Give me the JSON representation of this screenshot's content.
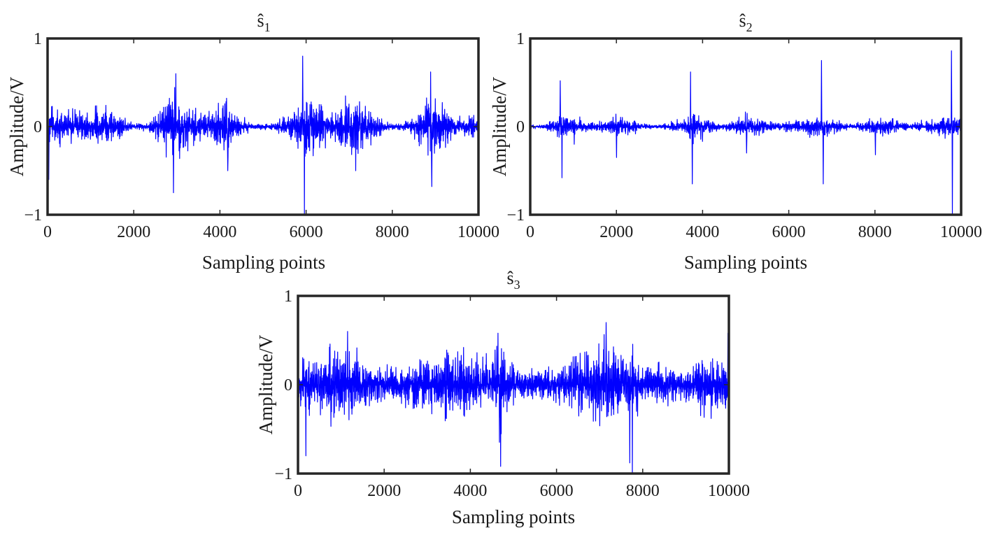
{
  "colors": {
    "signal": "#0000ff",
    "axes": "#262626"
  },
  "chart_data": [
    {
      "type": "line",
      "title": "ŝ",
      "title_subscript": "1",
      "xlabel": "Sampling points",
      "ylabel": "Amplitude/V",
      "xlim": [
        0,
        10000
      ],
      "ylim": [
        -1,
        1
      ],
      "xticks": [
        "0",
        "2000",
        "4000",
        "6000",
        "8000",
        "10000"
      ],
      "yticks": [
        "−1",
        "0",
        "1"
      ],
      "series": [
        {
          "name": "s1",
          "n_points": 10000,
          "envelope_x": [
            0,
            500,
            1000,
            1200,
            1500,
            2000,
            2300,
            2600,
            2900,
            3000,
            3300,
            3600,
            4000,
            4200,
            4400,
            4700,
            5000,
            5300,
            5600,
            5900,
            6000,
            6300,
            6600,
            6900,
            7200,
            7500,
            7800,
            8100,
            8400,
            8700,
            8900,
            9200,
            9500,
            10000
          ],
          "envelope_y": [
            0.3,
            0.15,
            0.2,
            0.3,
            0.2,
            0.03,
            0.05,
            0.2,
            0.45,
            0.38,
            0.25,
            0.15,
            0.3,
            0.35,
            0.15,
            0.05,
            0.03,
            0.05,
            0.15,
            0.3,
            0.4,
            0.3,
            0.15,
            0.3,
            0.4,
            0.25,
            0.05,
            0.03,
            0.08,
            0.25,
            0.35,
            0.25,
            0.1,
            0.15
          ],
          "spikes": [
            {
              "x": 0,
              "y": 0.35
            },
            {
              "x": 30,
              "y": -0.6
            },
            {
              "x": 2920,
              "y": -0.75
            },
            {
              "x": 2980,
              "y": 0.6
            },
            {
              "x": 4180,
              "y": -0.5
            },
            {
              "x": 5920,
              "y": 0.8
            },
            {
              "x": 5960,
              "y": -1.0
            },
            {
              "x": 7150,
              "y": -0.5
            },
            {
              "x": 8890,
              "y": 0.62
            },
            {
              "x": 8920,
              "y": -0.68
            }
          ]
        }
      ]
    },
    {
      "type": "line",
      "title": "ŝ",
      "title_subscript": "2",
      "xlabel": "Sampling points",
      "ylabel": "Amplitude/V",
      "xlim": [
        0,
        10000
      ],
      "ylim": [
        -1,
        1
      ],
      "xticks": [
        "0",
        "2000",
        "4000",
        "6000",
        "8000",
        "10000"
      ],
      "yticks": [
        "−1",
        "0",
        "1"
      ],
      "series": [
        {
          "name": "s2",
          "n_points": 10000,
          "envelope_x": [
            0,
            300,
            700,
            1000,
            1500,
            2000,
            2300,
            2700,
            3000,
            3500,
            3800,
            4100,
            4500,
            5000,
            5300,
            5700,
            6200,
            6800,
            7100,
            7500,
            8000,
            8300,
            8800,
            9200,
            9600,
            10000
          ],
          "envelope_y": [
            0.03,
            0.02,
            0.15,
            0.1,
            0.04,
            0.12,
            0.1,
            0.03,
            0.02,
            0.08,
            0.18,
            0.1,
            0.03,
            0.15,
            0.1,
            0.04,
            0.08,
            0.12,
            0.08,
            0.02,
            0.12,
            0.1,
            0.03,
            0.08,
            0.12,
            0.1
          ],
          "spikes": [
            {
              "x": 700,
              "y": 0.52
            },
            {
              "x": 740,
              "y": -0.58
            },
            {
              "x": 1020,
              "y": -0.2
            },
            {
              "x": 2000,
              "y": -0.35
            },
            {
              "x": 3720,
              "y": 0.62
            },
            {
              "x": 3760,
              "y": -0.65
            },
            {
              "x": 5020,
              "y": -0.3
            },
            {
              "x": 6760,
              "y": 0.75
            },
            {
              "x": 6800,
              "y": -0.65
            },
            {
              "x": 8010,
              "y": -0.32
            },
            {
              "x": 9780,
              "y": 0.86
            },
            {
              "x": 9800,
              "y": -1.0
            }
          ]
        }
      ]
    },
    {
      "type": "line",
      "title": "ŝ",
      "title_subscript": "3",
      "xlabel": "Sampling points",
      "ylabel": "Amplitude/V",
      "xlim": [
        0,
        10000
      ],
      "ylim": [
        -1,
        1
      ],
      "xticks": [
        "0",
        "2000",
        "4000",
        "6000",
        "8000",
        "10000"
      ],
      "yticks": [
        "−1",
        "0",
        "1"
      ],
      "series": [
        {
          "name": "s3",
          "n_points": 10000,
          "envelope_x": [
            0,
            200,
            500,
            800,
            1100,
            1500,
            2000,
            2500,
            3000,
            3500,
            4000,
            4400,
            4700,
            5000,
            5500,
            6000,
            6500,
            7000,
            7200,
            7500,
            7800,
            8000,
            8500,
            9000,
            9500,
            10000
          ],
          "envelope_y": [
            0.15,
            0.4,
            0.35,
            0.45,
            0.5,
            0.3,
            0.2,
            0.25,
            0.35,
            0.4,
            0.35,
            0.3,
            0.5,
            0.2,
            0.15,
            0.25,
            0.35,
            0.45,
            0.55,
            0.45,
            0.4,
            0.25,
            0.2,
            0.2,
            0.35,
            0.3
          ],
          "spikes": [
            {
              "x": 180,
              "y": -0.8
            },
            {
              "x": 1150,
              "y": 0.6
            },
            {
              "x": 4640,
              "y": 0.58
            },
            {
              "x": 4700,
              "y": -0.92
            },
            {
              "x": 7150,
              "y": 0.7
            },
            {
              "x": 7700,
              "y": -0.88
            },
            {
              "x": 7760,
              "y": -1.0
            },
            {
              "x": 9980,
              "y": 0.58
            }
          ]
        }
      ]
    }
  ]
}
